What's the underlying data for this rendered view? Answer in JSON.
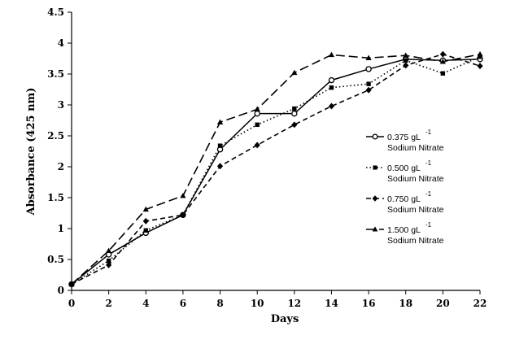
{
  "chart_data": {
    "type": "line",
    "title": "",
    "xlabel": "Days",
    "ylabel": "Absorbance (425 nm)",
    "xlim": [
      0,
      22
    ],
    "ylim": [
      0,
      4.5
    ],
    "xticks": [
      0,
      2,
      4,
      6,
      8,
      10,
      12,
      14,
      16,
      18,
      20,
      22
    ],
    "yticks": [
      0,
      0.5,
      1,
      1.5,
      2,
      2.5,
      3,
      3.5,
      4,
      4.5
    ],
    "ytick_labels": [
      "0",
      "0.5",
      "1",
      "1.5",
      "2",
      "2.5",
      "3",
      "3.5",
      "4",
      "4.5"
    ],
    "x": [
      0,
      2,
      4,
      6,
      8,
      10,
      12,
      14,
      16,
      18,
      20,
      22
    ],
    "grid": false,
    "legend_position": "right",
    "series": [
      {
        "name": "0.375 gL -1 Sodium Nitrate",
        "label_main": "0.375 gL",
        "label_sup": "-1",
        "label_sub": "Sodium Nitrate",
        "marker": "circle-open",
        "dash": "solid",
        "values": [
          0.1,
          0.58,
          0.93,
          1.22,
          2.28,
          2.86,
          2.86,
          3.4,
          3.58,
          3.74,
          3.72,
          3.74
        ]
      },
      {
        "name": "0.500 gL -1 Sodium Nitrate",
        "label_main": "0.500 gL",
        "label_sup": "-1",
        "label_sub": "Sodium Nitrate",
        "marker": "square",
        "dash": "dotted",
        "values": [
          0.1,
          0.48,
          0.97,
          1.22,
          2.34,
          2.68,
          2.94,
          3.28,
          3.34,
          3.72,
          3.51,
          3.78
        ]
      },
      {
        "name": "0.750 gL -1 Sodium Nitrate",
        "label_main": "0.750 gL",
        "label_sup": "-1",
        "label_sub": "Sodium Nitrate",
        "marker": "diamond",
        "dash": "dashed",
        "values": [
          0.1,
          0.41,
          1.12,
          1.22,
          2.01,
          2.35,
          2.68,
          2.98,
          3.24,
          3.64,
          3.82,
          3.63
        ]
      },
      {
        "name": "1.500 gL -1 Sodium Nitrate",
        "label_main": "1.500 gL",
        "label_sup": "-1",
        "label_sub": "Sodium Nitrate",
        "marker": "triangle",
        "dash": "longdash",
        "values": [
          0.1,
          0.64,
          1.31,
          1.53,
          2.72,
          2.93,
          3.52,
          3.81,
          3.76,
          3.8,
          3.7,
          3.82
        ]
      }
    ]
  }
}
